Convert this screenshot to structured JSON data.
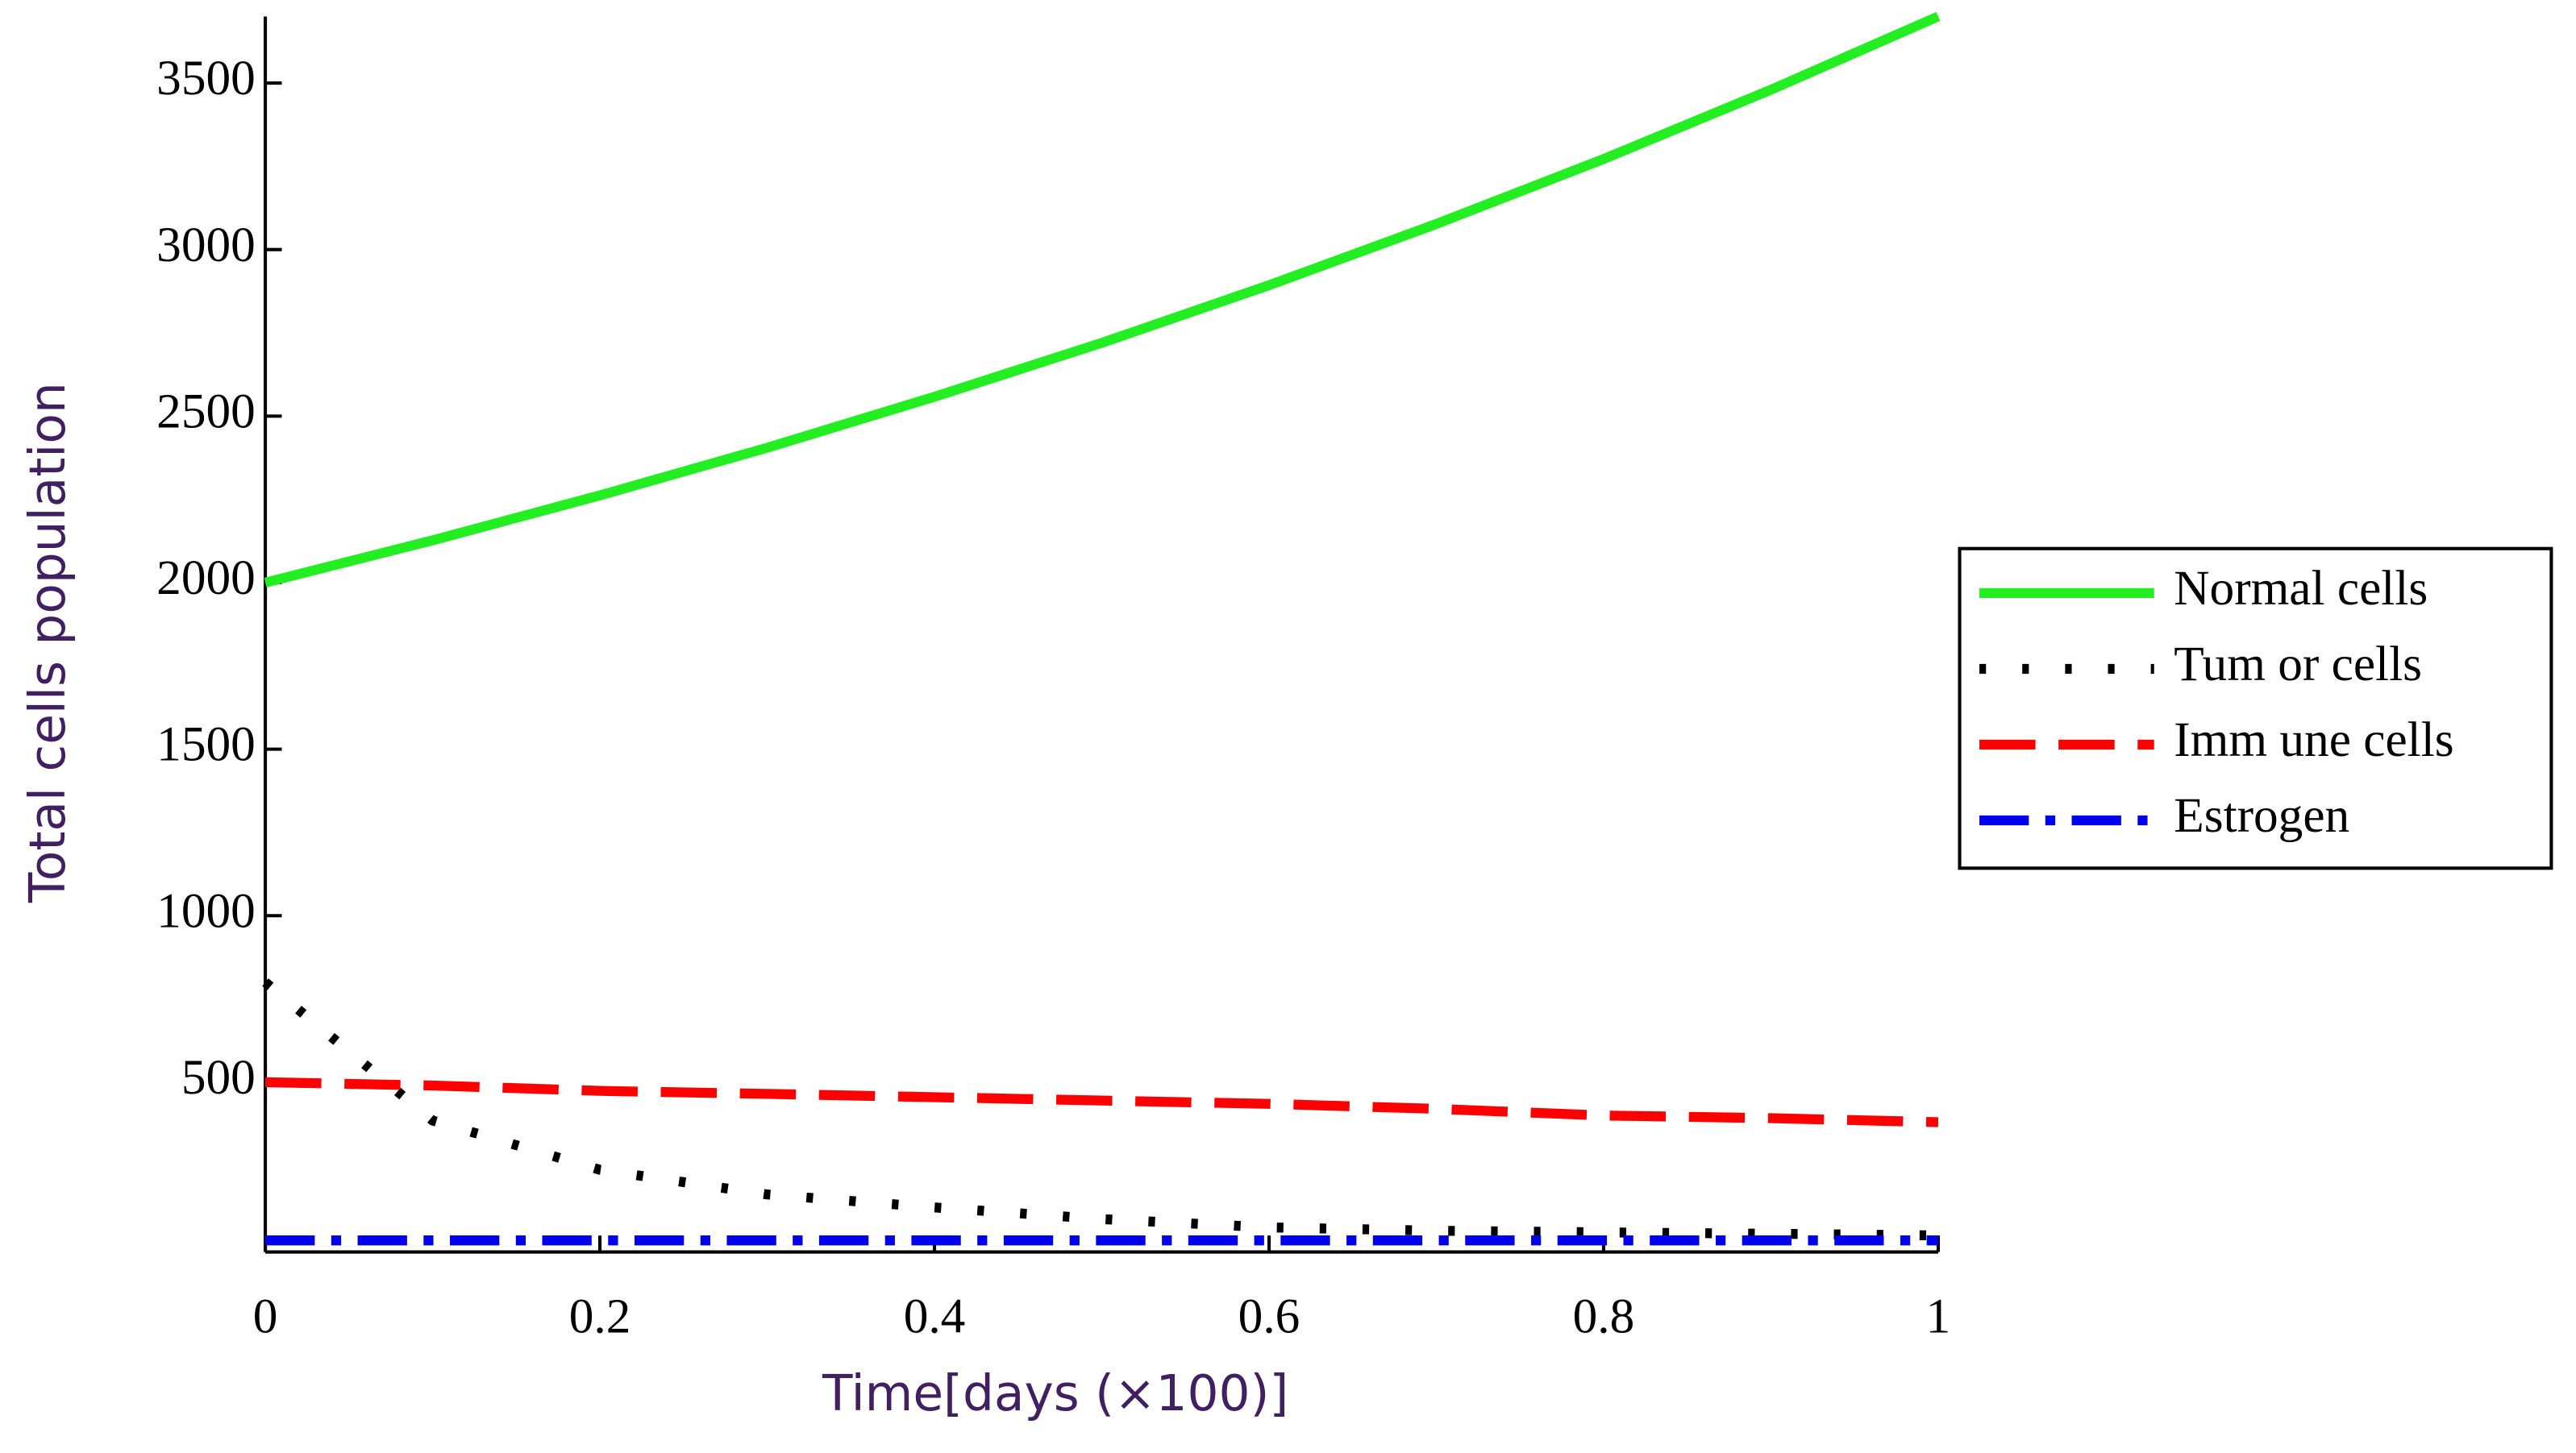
{
  "chart_data": {
    "type": "line",
    "x_label": "Time[days (×100)]",
    "y_label": "Total cells population",
    "x": [
      0,
      0.1,
      0.2,
      0.3,
      0.4,
      0.5,
      0.6,
      0.7,
      0.8,
      0.9,
      1
    ],
    "series": [
      {
        "name": "Normal cells",
        "color": "#22ee22",
        "style": "solid",
        "values": [
          2000,
          2127,
          2262,
          2405,
          2558,
          2720,
          2893,
          3077,
          3272,
          3480,
          3700
        ]
      },
      {
        "name": "Tum or cells",
        "color": "#000000",
        "style": "dotted",
        "values": [
          800,
          385,
          237,
          163,
          124,
          89,
          64,
          54,
          49,
          45,
          40
        ]
      },
      {
        "name": "Imm une cells",
        "color": "#ff0000",
        "style": "dashed",
        "values": [
          500,
          490,
          474,
          465,
          455,
          445,
          435,
          420,
          400,
          392,
          380
        ]
      },
      {
        "name": "Estrogen",
        "color": "#0000ee",
        "style": "dashdot",
        "values": [
          25,
          25,
          25,
          25,
          25,
          25,
          25,
          25,
          25,
          25,
          25
        ]
      }
    ],
    "xlim": [
      0,
      1
    ],
    "xticks": [
      0,
      0.2,
      0.4,
      0.6,
      0.8,
      1
    ],
    "ylim": [
      0,
      3700
    ],
    "yticks": [
      500,
      1000,
      1500,
      2000,
      2500,
      3000,
      3500
    ],
    "legend": "right"
  }
}
